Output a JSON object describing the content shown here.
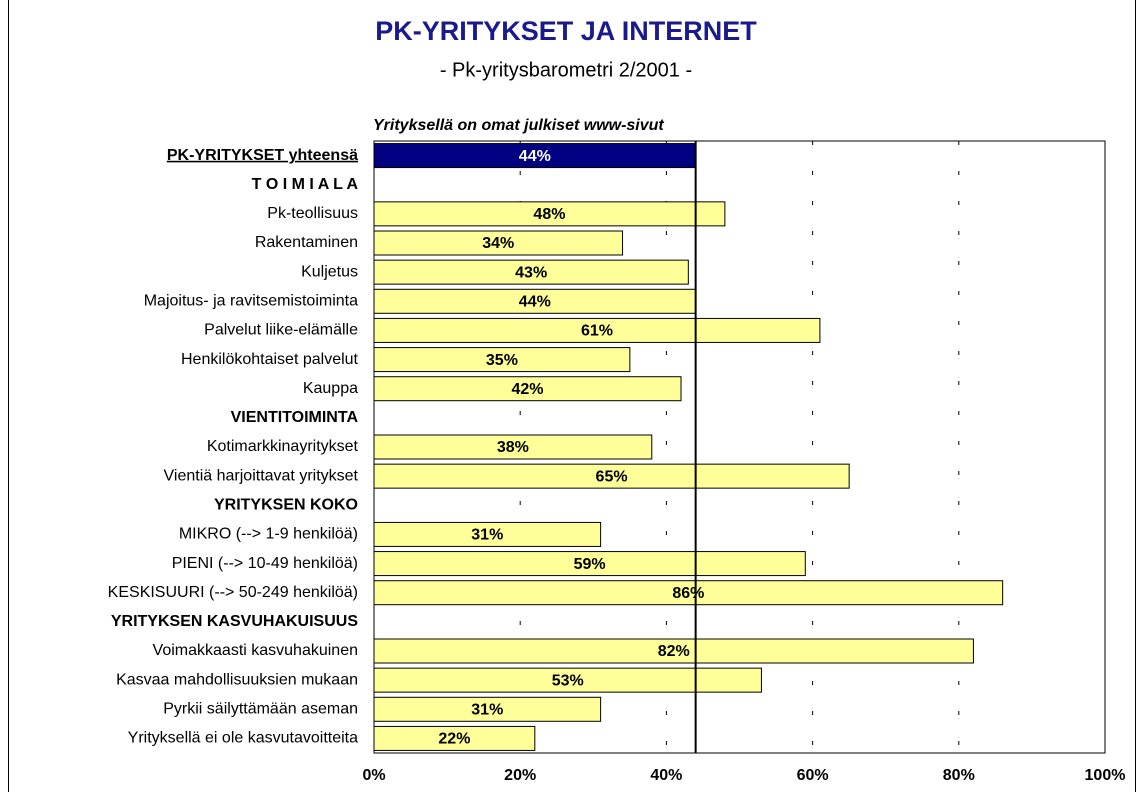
{
  "chart_data": {
    "type": "bar",
    "orientation": "horizontal",
    "title": "PK-YRITYKSET JA INTERNET",
    "subtitle": "- Pk-yritysbarometri 2/2001 -",
    "chart_title": "Yrityksellä on omat julkiset www-sivut",
    "categories": [
      "PK-YRITYKSET yhteensä",
      "T O I M I A L A",
      "Pk-teollisuus",
      "Rakentaminen",
      "Kuljetus",
      "Majoitus- ja ravitsemistoiminta",
      "Palvelut liike-elämälle",
      "Henkilökohtaiset palvelut",
      "Kauppa",
      "VIENTITOIMINTA",
      "Kotimarkkinayritykset",
      "Vientiä harjoittavat yritykset",
      "YRITYKSEN KOKO",
      "MIKRO (--> 1-9 henkilöä)",
      "PIENI (--> 10-49 henkilöä)",
      "KESKISUURI (--> 50-249 henkilöä)",
      "YRITYKSEN KASVUHAKUISUUS",
      "Voimakkaasti kasvuhakuinen",
      "Kasvaa mahdollisuuksien mukaan",
      "Pyrkii säilyttämään aseman",
      "Yrityksellä ei ole kasvutavoitteita"
    ],
    "values": [
      44,
      null,
      48,
      34,
      43,
      44,
      61,
      35,
      42,
      null,
      38,
      65,
      null,
      31,
      59,
      86,
      null,
      82,
      53,
      31,
      22
    ],
    "value_labels": [
      "44%",
      null,
      "48%",
      "34%",
      "43%",
      "44%",
      "61%",
      "35%",
      "42%",
      null,
      "38%",
      "65%",
      null,
      "31%",
      "59%",
      "86%",
      null,
      "82%",
      "53%",
      "31%",
      "22%"
    ],
    "color": "#ffff99",
    "highlight_color": "#000080",
    "xlim": [
      0,
      100
    ],
    "xticks": [
      {
        "value": 0,
        "label": "0%"
      },
      {
        "value": 20,
        "label": "20%"
      },
      {
        "value": 40,
        "label": "40%"
      },
      {
        "value": 60,
        "label": "60%"
      },
      {
        "value": 80,
        "label": "80%"
      },
      {
        "value": 100,
        "label": "100%"
      }
    ],
    "grid": true
  }
}
